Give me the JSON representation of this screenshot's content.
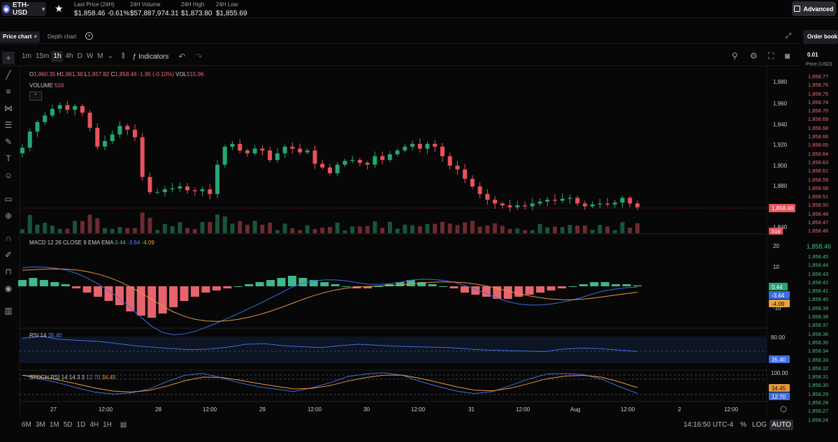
{
  "header": {
    "pair": "ETH-USD",
    "stats": [
      {
        "label": "Last Price (24H)",
        "value": "$1,858.46",
        "change": "-0.61%"
      },
      {
        "label": "24H Volume",
        "value": "$57,887,974.31"
      },
      {
        "label": "24H High",
        "value": "$1,873.80"
      },
      {
        "label": "24H Low",
        "value": "$1,855.69"
      }
    ],
    "advanced_label": "Advanced"
  },
  "tabs": {
    "price_chart": "Price chart",
    "depth_chart": "Depth chart",
    "order_book": "Order book"
  },
  "toolbar": {
    "timeframes": [
      "1m",
      "15m",
      "1h",
      "4h",
      "D",
      "W",
      "M"
    ],
    "selected_timeframe": "1h",
    "indicators_label": "Indicators"
  },
  "legend": {
    "o_label": "O",
    "o_value": "1,860.35",
    "h_label": "H",
    "h_value": "1,861.38",
    "l_label": "L",
    "l_value": "1,857.82",
    "c_label": "C",
    "c_value": "1,858.46",
    "change": "-1.95 (-0.10%)",
    "vol_label": "VOL",
    "vol_value": "515.96",
    "volume_label": "VOLUME",
    "volume_value": "516"
  },
  "macd": {
    "label": "MACD 12 26 CLOSE 9 EMA EMA",
    "hist": "0.44",
    "macd": "-3.64",
    "signal": "-4.09"
  },
  "rsi": {
    "label": "RSI 14",
    "value": "35.40"
  },
  "stoch": {
    "label": "STOCH RSI 14 14 3 3",
    "k": "12.70",
    "d": "34.45"
  },
  "axes": {
    "price_ticks": [
      "1,980",
      "1,960",
      "1,940",
      "1,920",
      "1,900",
      "1,880",
      "1,840"
    ],
    "price_marker": "1,858.46",
    "volume_marker": "516",
    "macd_ticks": [
      "20",
      "10",
      "-10"
    ],
    "macd_markers": [
      "0.44",
      "-3.64",
      "-4.09"
    ],
    "rsi_ticks": [
      "80.00"
    ],
    "rsi_marker": "35.40",
    "stoch_ticks": [
      "100.00"
    ],
    "stoch_markers": [
      "34.45",
      "12.70"
    ],
    "time_ticks": [
      "27",
      "12:00",
      "28",
      "12:00",
      "29",
      "12:00",
      "30",
      "12:00",
      "31",
      "12:00",
      "Aug",
      "12:00",
      "2",
      "12:00"
    ]
  },
  "bottom": {
    "ranges": [
      "6M",
      "3M",
      "1M",
      "5D",
      "1D",
      "4H",
      "1H"
    ],
    "time": "14:16:50 UTC-4",
    "pct": "%",
    "log": "LOG",
    "auto": "AUTO"
  },
  "order_book": {
    "tick": "0.01",
    "price_label": "Price (USD)",
    "asks": [
      "1,858.77",
      "1,858.76",
      "1,858.75",
      "1,858.74",
      "1,858.70",
      "1,858.69",
      "1,858.68",
      "1,858.66",
      "1,858.65",
      "1,858.64",
      "1,858.63",
      "1,858.61",
      "1,858.59",
      "1,858.58",
      "1,858.51",
      "1,858.50",
      "1,858.48",
      "1,858.47",
      "1,858.46"
    ],
    "mid": "1,858.46",
    "bids": [
      "1,858.45",
      "1,858.44",
      "1,858.43",
      "1,858.42",
      "1,858.41",
      "1,858.40",
      "1,858.39",
      "1,858.38",
      "1,858.37",
      "1,858.36",
      "1,858.35",
      "1,858.34",
      "1,858.33",
      "1,858.32",
      "1,858.31",
      "1,858.30",
      "1,858.29",
      "1,858.28",
      "1,858.27",
      "1,858.24"
    ]
  },
  "colors": {
    "up": "#26a672",
    "down": "#e8525a",
    "macd": "#3e6de0",
    "signal": "#e8963c",
    "rsi": "#3e6de0"
  },
  "chart_data": {
    "type": "candlestick",
    "price_range": [
      1835,
      1990
    ],
    "close_series_approx": [
      1921,
      1938,
      1948,
      1955,
      1962,
      1966,
      1961,
      1965,
      1958,
      1942,
      1922,
      1928,
      1935,
      1944,
      1940,
      1932,
      1890,
      1874,
      1874,
      1877,
      1878,
      1880,
      1876,
      1875,
      1877,
      1872,
      1903,
      1922,
      1925,
      1918,
      1915,
      1920,
      1918,
      1908,
      1915,
      1922,
      1920,
      1916,
      1918,
      1904,
      1900,
      1894,
      1903,
      1907,
      1908,
      1905,
      1903,
      1912,
      1908,
      1914,
      1918,
      1922,
      1925,
      1920,
      1925,
      1922,
      1912,
      1902,
      1898,
      1888,
      1880,
      1872,
      1866,
      1862,
      1860,
      1858,
      1860,
      1859,
      1862,
      1864,
      1866,
      1865,
      1867,
      1868,
      1862,
      1859,
      1861,
      1862,
      1861,
      1863,
      1868,
      1862,
      1858
    ],
    "macd_hist_approx": [
      3,
      4,
      3,
      2,
      1,
      -1,
      -3,
      -5,
      -7,
      -9,
      -12,
      -14,
      -15,
      -13,
      -10,
      -7,
      -5,
      -3,
      -2,
      -1,
      0,
      1,
      2,
      3,
      4,
      5,
      4,
      3,
      2,
      1,
      0,
      -1,
      -1,
      0,
      1,
      2,
      3,
      2,
      1,
      0,
      -1,
      -3,
      -4,
      -5,
      -6,
      -6,
      -5,
      -4,
      -3,
      -2,
      -1,
      0,
      1,
      2,
      2,
      1,
      1,
      0.44
    ],
    "rsi_approx": [
      62,
      66,
      60,
      58,
      56,
      52,
      47,
      44,
      41,
      39,
      40,
      44,
      50,
      51,
      47,
      45,
      43,
      47,
      50,
      48,
      46,
      45,
      44,
      43,
      40,
      38,
      37,
      36,
      35,
      40,
      42,
      41,
      38,
      35.4
    ],
    "stoch_k_approx": [
      85,
      70,
      55,
      35,
      18,
      10,
      15,
      30,
      60,
      85,
      92,
      75,
      55,
      40,
      30,
      20,
      35,
      55,
      80,
      90,
      95,
      85,
      60,
      40,
      22,
      12,
      20,
      45,
      70,
      90,
      92,
      88,
      70,
      40,
      12.7
    ]
  }
}
